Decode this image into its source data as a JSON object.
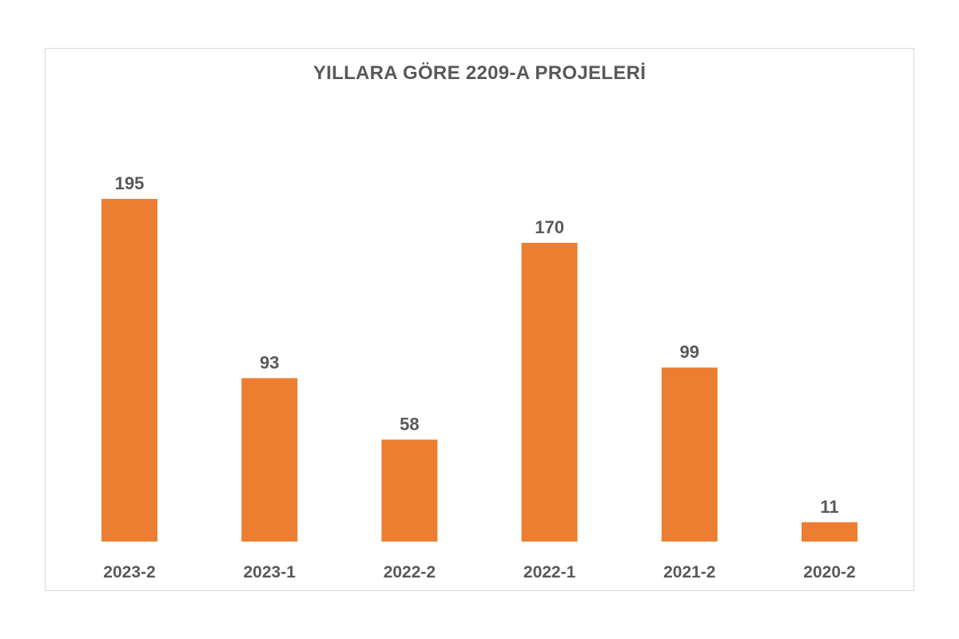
{
  "chart_data": {
    "type": "bar",
    "title": "YILLARA GÖRE 2209-A PROJELERİ",
    "categories": [
      "2023-2",
      "2023-1",
      "2022-2",
      "2022-1",
      "2021-2",
      "2020-2"
    ],
    "values": [
      195,
      93,
      58,
      170,
      99,
      11
    ],
    "xlabel": "",
    "ylabel": "",
    "ylim": [
      0,
      195
    ],
    "grid": false,
    "legend": "none",
    "bar_color": "#ED7D31",
    "text_color": "#595959"
  }
}
